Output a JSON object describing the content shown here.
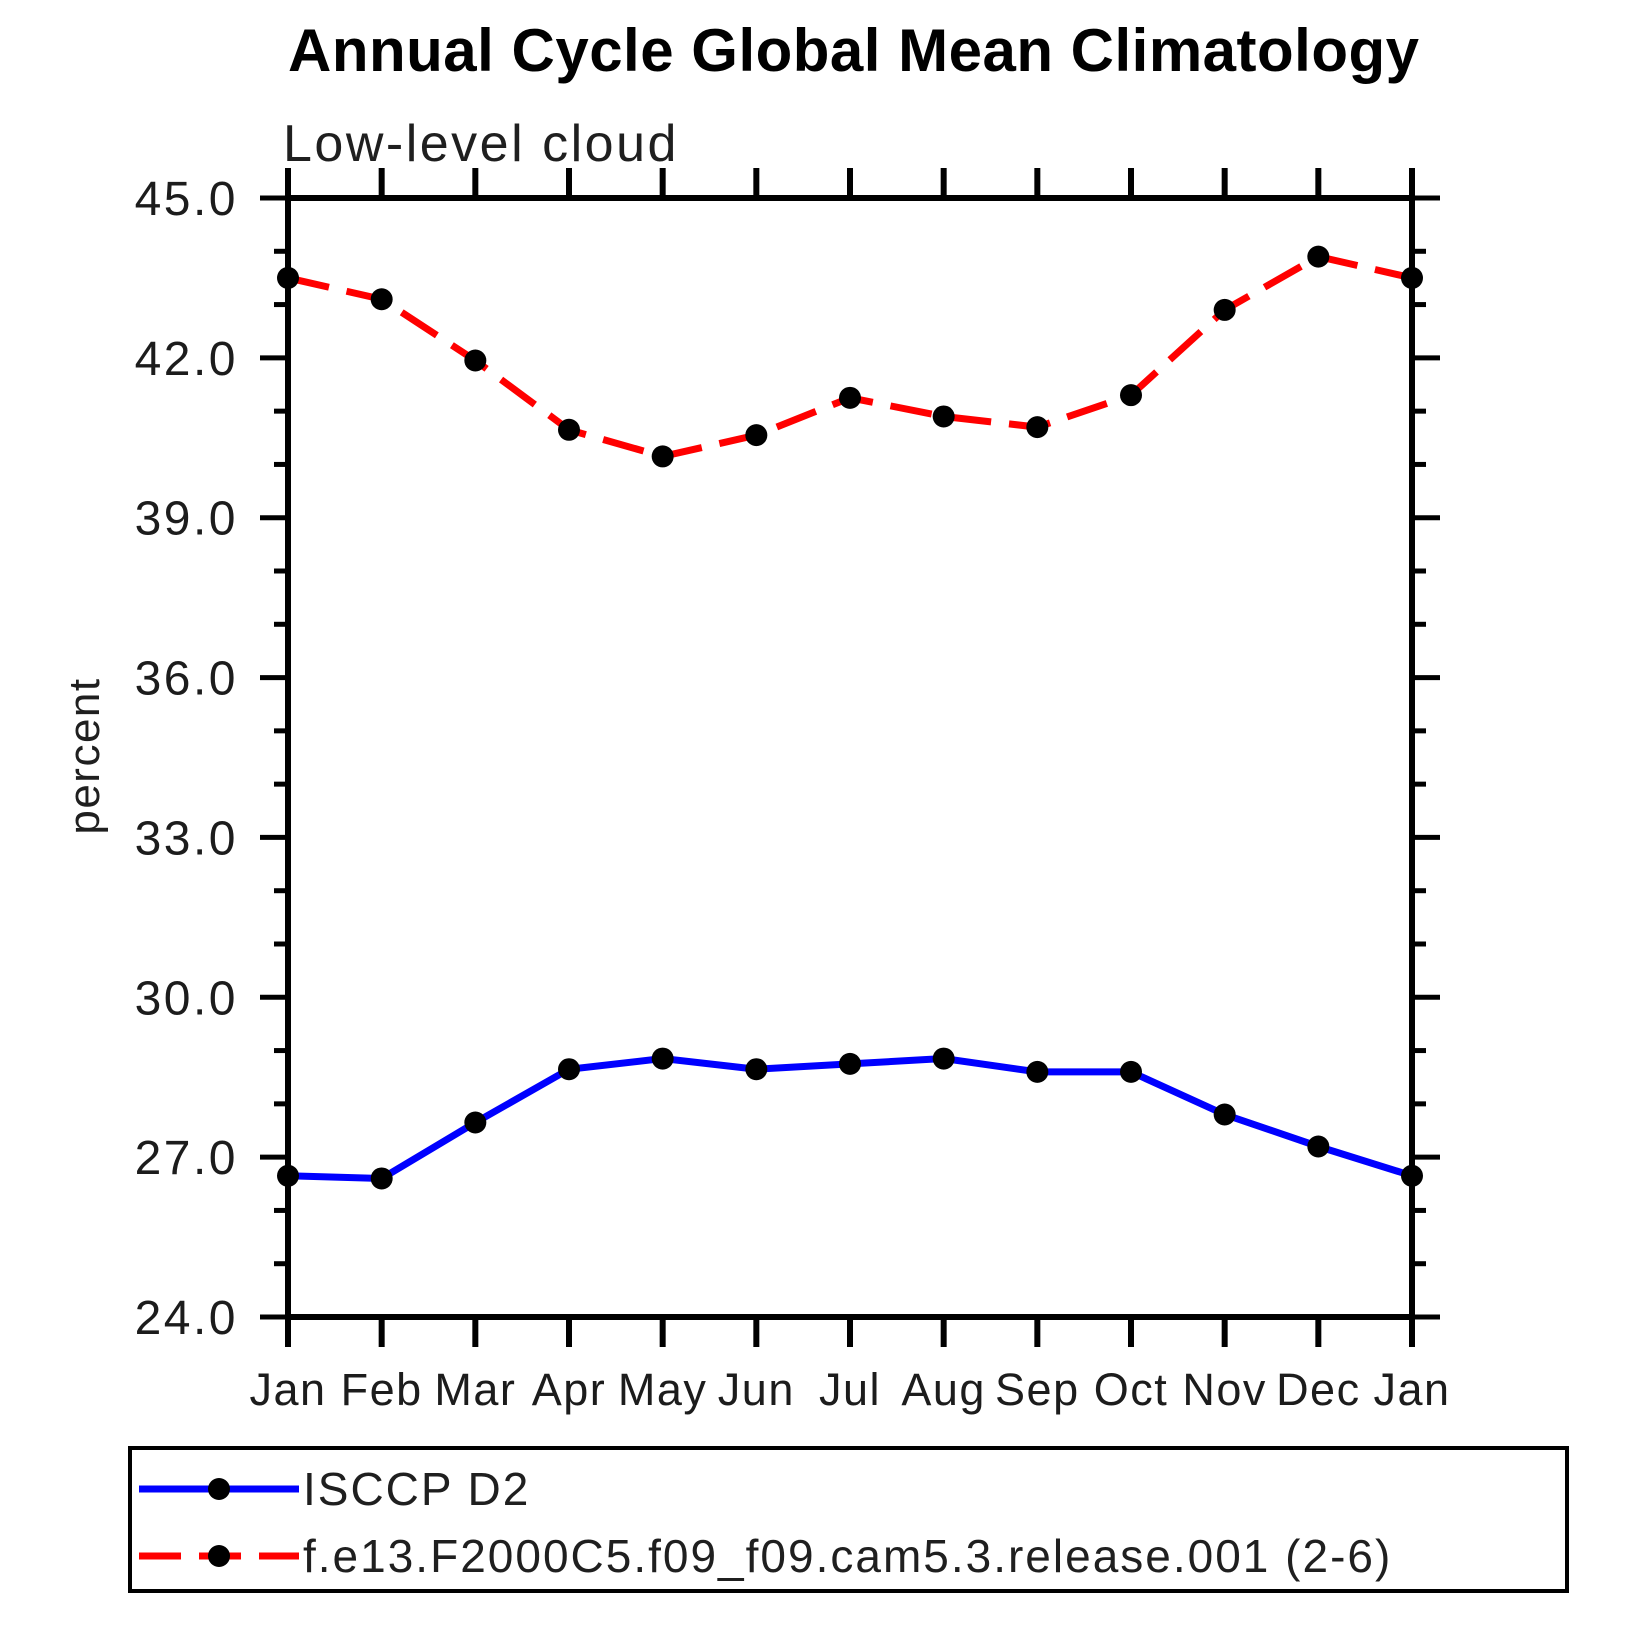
{
  "title": "Annual Cycle Global Mean Climatology",
  "subtitle": "Low-level cloud",
  "ylabel": "percent",
  "legend": {
    "items": [
      {
        "label": "ISCCP D2",
        "color": "#0000ff",
        "line_style": "solid",
        "marker": "filled-circle"
      },
      {
        "label": "f.e13.F2000C5.f09_f09.cam5.3.release.001 (2-6)",
        "color": "#ff0000",
        "line_style": "dashed",
        "marker": "filled-circle"
      }
    ]
  },
  "chart_data": {
    "type": "line",
    "title": "Annual Cycle Global Mean Climatology",
    "subtitle": "Low-level cloud",
    "xlabel": "",
    "ylabel": "percent",
    "categories": [
      "Jan",
      "Feb",
      "Mar",
      "Apr",
      "May",
      "Jun",
      "Jul",
      "Aug",
      "Sep",
      "Oct",
      "Nov",
      "Dec",
      "Jan"
    ],
    "series": [
      {
        "name": "ISCCP D2",
        "color": "#0000ff",
        "line_style": "solid",
        "values": [
          26.65,
          26.6,
          27.65,
          28.65,
          28.85,
          28.65,
          28.75,
          28.85,
          28.6,
          28.6,
          27.8,
          27.2,
          26.65
        ]
      },
      {
        "name": "f.e13.F2000C5.f09_f09.cam5.3.release.001 (2-6)",
        "color": "#ff0000",
        "line_style": "dashed",
        "values": [
          43.5,
          43.1,
          41.95,
          40.65,
          40.15,
          40.55,
          41.25,
          40.9,
          40.7,
          41.3,
          42.9,
          43.9,
          43.5
        ]
      }
    ],
    "ylim": [
      24.0,
      45.0
    ],
    "ytick_major_step": 3,
    "ytick_minor_step": 1,
    "ytick_labels": [
      "24.0",
      "27.0",
      "30.0",
      "33.0",
      "36.0",
      "39.0",
      "42.0",
      "45.0"
    ],
    "marker_color": "#000000",
    "grid": false,
    "legend_position": "bottom"
  }
}
